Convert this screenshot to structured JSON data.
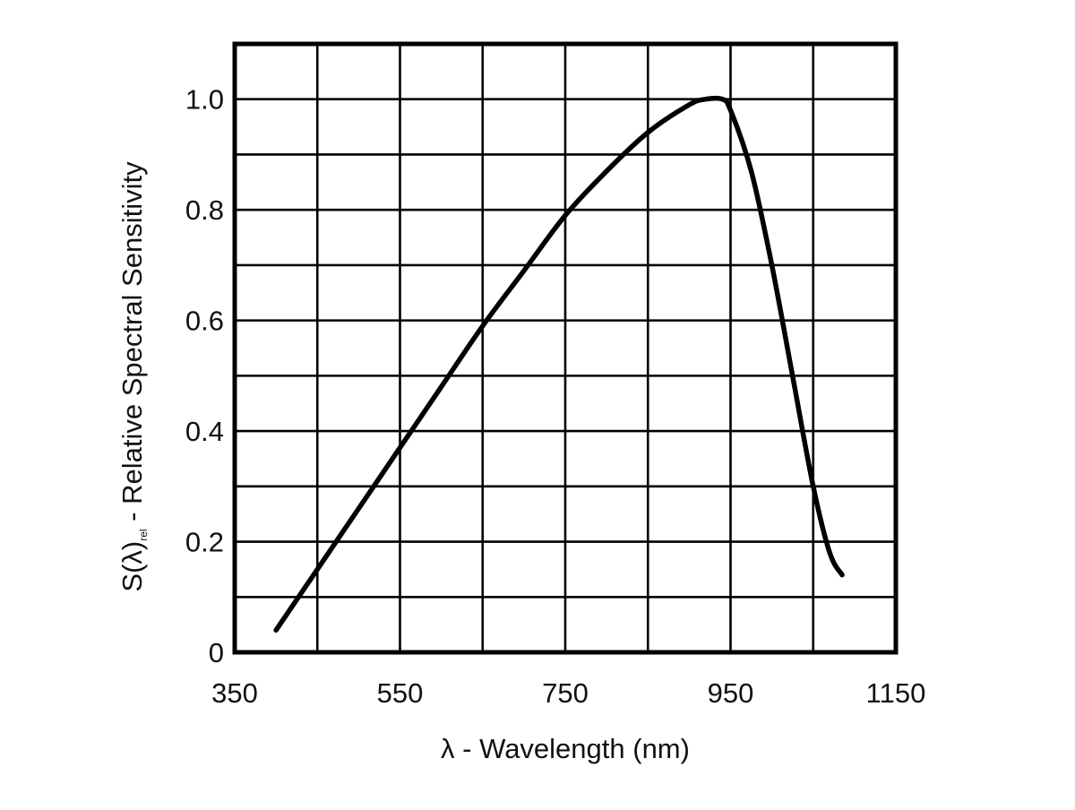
{
  "chart_data": {
    "type": "line",
    "xlabel": "λ - Wavelength (nm)",
    "ylabel": {
      "prefix": "S(λ)",
      "subscript": "rel",
      "suffix": " - Relative Spectral Sensitivity"
    },
    "xlim": [
      350,
      1150
    ],
    "ylim": [
      0,
      1.1
    ],
    "x_ticks": [
      {
        "value": 350,
        "label": "350"
      },
      {
        "value": 550,
        "label": "550"
      },
      {
        "value": 750,
        "label": "750"
      },
      {
        "value": 950,
        "label": "950"
      },
      {
        "value": 1150,
        "label": "1150"
      }
    ],
    "y_ticks": [
      {
        "value": 0,
        "label": "0"
      },
      {
        "value": 0.2,
        "label": "0.2"
      },
      {
        "value": 0.4,
        "label": "0.4"
      },
      {
        "value": 0.6,
        "label": "0.6"
      },
      {
        "value": 0.8,
        "label": "0.8"
      },
      {
        "value": 1.0,
        "label": "1.0"
      }
    ],
    "grid": true,
    "x_grid_step": 100,
    "y_grid_step": 0.1,
    "series": [
      {
        "color": "#000000",
        "points": [
          [
            400,
            0.04
          ],
          [
            450,
            0.15
          ],
          [
            500,
            0.26
          ],
          [
            550,
            0.37
          ],
          [
            600,
            0.48
          ],
          [
            650,
            0.59
          ],
          [
            700,
            0.69
          ],
          [
            750,
            0.79
          ],
          [
            800,
            0.87
          ],
          [
            850,
            0.94
          ],
          [
            900,
            0.99
          ],
          [
            920,
            1.0
          ],
          [
            940,
            1.0
          ],
          [
            950,
            0.98
          ],
          [
            975,
            0.87
          ],
          [
            1000,
            0.7
          ],
          [
            1025,
            0.5
          ],
          [
            1050,
            0.3
          ],
          [
            1070,
            0.18
          ],
          [
            1085,
            0.14
          ]
        ]
      }
    ]
  }
}
